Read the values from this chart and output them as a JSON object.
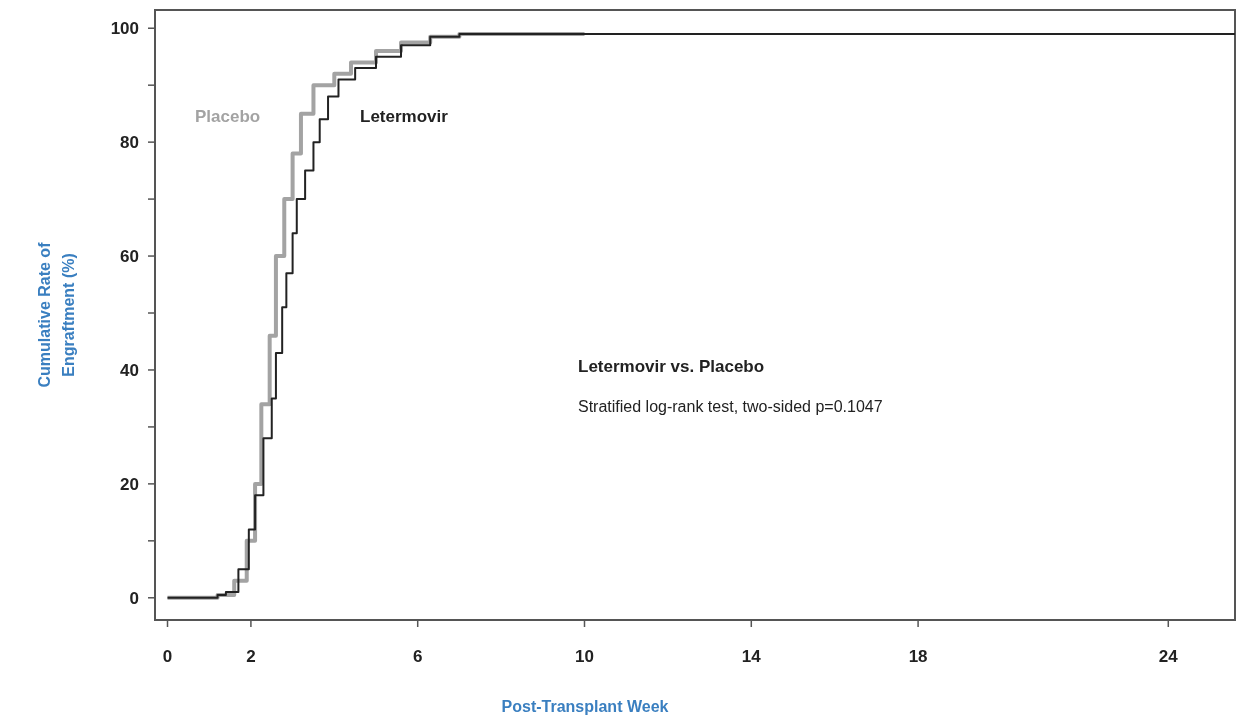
{
  "chart_data": {
    "type": "step",
    "xlabel": "Post-Transplant Week",
    "ylabel": "Cumulative Rate of\nEngraftment  (%)",
    "xlim": [
      -0.3,
      25.6
    ],
    "xticks": [
      0,
      2,
      6,
      10,
      14,
      18,
      24
    ],
    "ylim": [
      -3.9,
      103.2
    ],
    "yticks": [
      0,
      {
        "value": 10,
        "label": null
      },
      20,
      {
        "value": 30,
        "label": null
      },
      40,
      {
        "value": 50,
        "label": null
      },
      60,
      {
        "value": 70,
        "label": null
      },
      80,
      {
        "value": 90,
        "label": null
      },
      100
    ],
    "series": [
      {
        "name": "Placebo",
        "color": "#a3a3a3",
        "x": [
          0,
          1.2,
          1.6,
          1.9,
          2.1,
          2.25,
          2.45,
          2.6,
          2.8,
          3.0,
          3.2,
          3.5,
          4.0,
          4.4,
          5.0,
          5.6,
          6.3,
          7,
          10
        ],
        "values": [
          0,
          0.5,
          3,
          10,
          20,
          34,
          46,
          60,
          70,
          78,
          85,
          90,
          92,
          94,
          96,
          97.5,
          98.5,
          99,
          99
        ]
      },
      {
        "name": "Letermovir",
        "color": "#222222",
        "x": [
          0,
          1.2,
          1.4,
          1.7,
          1.95,
          2.1,
          2.3,
          2.5,
          2.6,
          2.75,
          2.85,
          3.0,
          3.1,
          3.3,
          3.5,
          3.65,
          3.85,
          4.1,
          4.5,
          5.0,
          5.6,
          6.3,
          7,
          25.6
        ],
        "values": [
          0,
          0.5,
          1,
          5,
          12,
          18,
          28,
          35,
          43,
          51,
          57,
          64,
          70,
          75,
          80,
          84,
          88,
          91,
          93,
          95,
          97,
          98.5,
          99,
          99
        ]
      }
    ],
    "annotations": [
      "Letermovir vs. Placebo",
      "Stratified log-rank test, two-sided p=0.1047"
    ]
  }
}
